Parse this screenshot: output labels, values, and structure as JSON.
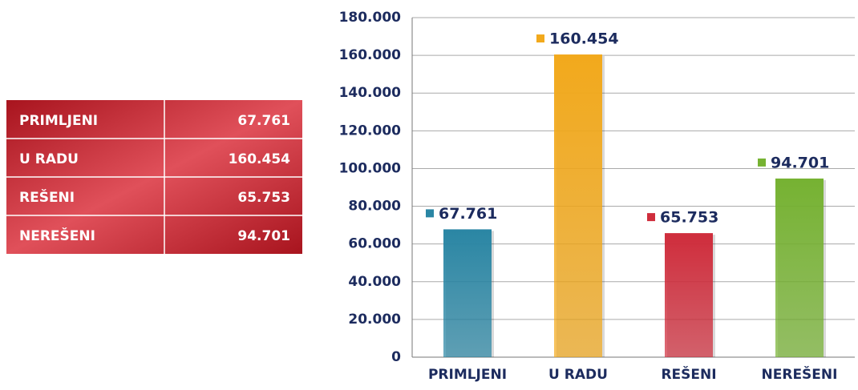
{
  "table": {
    "rows": [
      [
        "PRIMLJENI",
        "67.761"
      ],
      [
        "U RADU",
        "160.454"
      ],
      [
        "REŠENI",
        "65.753"
      ],
      [
        "NEREŠENI",
        "94.701"
      ]
    ]
  },
  "chart_data": {
    "type": "bar",
    "categories": [
      "PRIMLJENI",
      "U RADU",
      "REŠENI",
      "NEREŠENI"
    ],
    "values": [
      67761,
      160454,
      65753,
      94701
    ],
    "value_labels": [
      "67.761",
      "160.454",
      "65.753",
      "94.701"
    ],
    "colors": [
      "#2a86a4",
      "#f2a91c",
      "#cf2d3c",
      "#76b232"
    ],
    "ylim": [
      0,
      180000
    ],
    "yticks": [
      0,
      {
        "value": 20000,
        "label": "20.000"
      },
      {
        "value": 40000,
        "label": "40.000"
      },
      {
        "value": 60000,
        "label": "60.000"
      },
      {
        "value": 80000,
        "label": "80.000"
      },
      {
        "value": 100000,
        "label": "100.000"
      },
      {
        "value": 120000,
        "label": "120.000"
      },
      {
        "value": 140000,
        "label": "140.000"
      },
      {
        "value": 160000,
        "label": "160.000"
      },
      {
        "value": 180000,
        "label": "180.000"
      }
    ],
    "grid": true
  }
}
